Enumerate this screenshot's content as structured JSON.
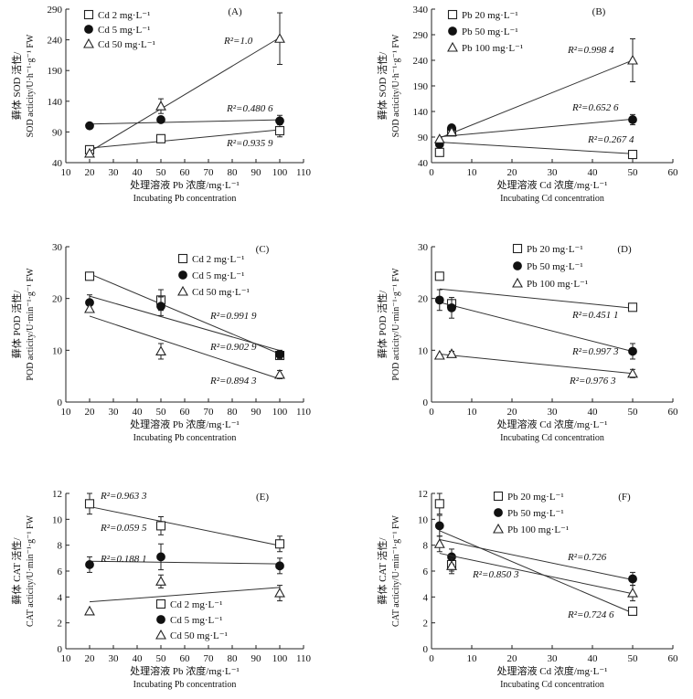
{
  "chart_data": [
    {
      "panel": "(A)",
      "type": "scatter",
      "xlabel_cn": "处理溶液 Pb 浓度/mg·L⁻¹",
      "xlabel_en": "Incubating Pb concentration",
      "ylabel_cn": "藓体 SOD 活性/",
      "ylabel_en": "SOD acticity/U·h⁻¹·g⁻¹ FW",
      "xlim": [
        10,
        110
      ],
      "xticks": [
        10,
        20,
        30,
        40,
        50,
        60,
        70,
        80,
        90,
        100,
        110
      ],
      "ylim": [
        40,
        290
      ],
      "yticks": [
        40,
        90,
        140,
        190,
        240,
        290
      ],
      "series": [
        {
          "name": "Cd 2 mg·L⁻¹",
          "marker": "square",
          "x": [
            20,
            50,
            100
          ],
          "y": [
            61,
            79,
            92
          ],
          "err": [
            0,
            0,
            10
          ],
          "r2": "R²=0.935 9"
        },
        {
          "name": "Cd 5 mg·L⁻¹",
          "marker": "diamond",
          "x": [
            20,
            50,
            100
          ],
          "y": [
            100,
            110,
            108
          ],
          "err": [
            0,
            5,
            9
          ],
          "r2": "R²=0.480 6"
        },
        {
          "name": "Cd 50 mg·L⁻¹",
          "marker": "triangle",
          "x": [
            20,
            50,
            100
          ],
          "y": [
            55,
            132,
            242
          ],
          "err": [
            0,
            12,
            42
          ],
          "r2": "R²=1.0"
        }
      ]
    },
    {
      "panel": "(B)",
      "type": "scatter",
      "xlabel_cn": "处理溶液 Cd 浓度/mg·L⁻¹",
      "xlabel_en": "Incubating Cd concentration",
      "ylabel_cn": "藓体 SOD 活性/",
      "ylabel_en": "SOD acticity/U·h⁻¹·g⁻¹ FW",
      "xlim": [
        0,
        60
      ],
      "xticks": [
        0,
        10,
        20,
        30,
        40,
        50,
        60
      ],
      "ylim": [
        40,
        340
      ],
      "yticks": [
        40,
        90,
        140,
        190,
        240,
        290,
        340
      ],
      "series": [
        {
          "name": "Pb 20 mg·L⁻¹",
          "marker": "square",
          "x": [
            2,
            5,
            50
          ],
          "y": [
            60,
            100,
            56
          ],
          "err": [
            0,
            0,
            0
          ],
          "r2": "R²=0.267 4"
        },
        {
          "name": "Pb 50 mg·L⁻¹",
          "marker": "diamond",
          "x": [
            2,
            5,
            50
          ],
          "y": [
            76,
            108,
            124
          ],
          "err": [
            0,
            5,
            10
          ],
          "r2": "R²=0.652 6"
        },
        {
          "name": "Pb 100 mg·L⁻¹",
          "marker": "triangle",
          "x": [
            2,
            5,
            50
          ],
          "y": [
            86,
            100,
            240
          ],
          "err": [
            0,
            6,
            42
          ],
          "r2": "R²=0.998 4"
        }
      ]
    },
    {
      "panel": "(C)",
      "type": "scatter",
      "xlabel_cn": "处理溶液 Pb 浓度/mg·L⁻¹",
      "xlabel_en": "Incubating Pb concentration",
      "ylabel_cn": "藓体 POD 活性/",
      "ylabel_en": "POD acticity/U·min⁻¹·g⁻¹ FW",
      "xlim": [
        10,
        110
      ],
      "xticks": [
        10,
        20,
        30,
        40,
        50,
        60,
        70,
        80,
        90,
        100,
        110
      ],
      "ylim": [
        0,
        30
      ],
      "yticks": [
        0,
        10,
        20,
        30
      ],
      "series": [
        {
          "name": "Cd 2 mg·L⁻¹",
          "marker": "square",
          "x": [
            20,
            50,
            100
          ],
          "y": [
            24.3,
            19.7,
            9.0
          ],
          "err": [
            0,
            2.0,
            0.7
          ],
          "r2": "R²=0.991 9"
        },
        {
          "name": "Cd 5 mg·L⁻¹",
          "marker": "diamond",
          "x": [
            20,
            50,
            100
          ],
          "y": [
            19.2,
            18.5,
            9.2
          ],
          "err": [
            1.5,
            1.8,
            0.8
          ],
          "r2": "R²=0.902 9"
        },
        {
          "name": "Cd 50 mg·L⁻¹",
          "marker": "triangle",
          "x": [
            20,
            50,
            100
          ],
          "y": [
            18.0,
            9.8,
            5.3
          ],
          "err": [
            0,
            1.5,
            0.8
          ],
          "r2": "R²=0.894 3"
        }
      ]
    },
    {
      "panel": "(D)",
      "type": "scatter",
      "xlabel_cn": "处理溶液 Cd 浓度/mg·L⁻¹",
      "xlabel_en": "Incubating Cd concentration",
      "ylabel_cn": "藓体 POD 活性/",
      "ylabel_en": "POD acticity/U·min⁻¹·g⁻¹ FW",
      "xlim": [
        0,
        60
      ],
      "xticks": [
        0,
        10,
        20,
        30,
        40,
        50,
        60
      ],
      "ylim": [
        0,
        30
      ],
      "yticks": [
        0,
        10,
        20,
        30
      ],
      "series": [
        {
          "name": "Pb 20 mg·L⁻¹",
          "marker": "square",
          "x": [
            2,
            5,
            50
          ],
          "y": [
            24.3,
            19.0,
            18.3
          ],
          "err": [
            0,
            0,
            0
          ],
          "r2": "R²=0.451 1"
        },
        {
          "name": "Pb 50 mg·L⁻¹",
          "marker": "diamond",
          "x": [
            2,
            5,
            50
          ],
          "y": [
            19.7,
            18.2,
            9.8
          ],
          "err": [
            2.0,
            2.0,
            1.5
          ],
          "r2": "R²=0.997 3"
        },
        {
          "name": "Pb 100 mg·L⁻¹",
          "marker": "triangle",
          "x": [
            2,
            5,
            50
          ],
          "y": [
            9.0,
            9.3,
            5.5
          ],
          "err": [
            0,
            0.5,
            0.8
          ],
          "r2": "R²=0.976 3"
        }
      ]
    },
    {
      "panel": "(E)",
      "type": "scatter",
      "xlabel_cn": "处理溶液 Pb 浓度/mg·L⁻¹",
      "xlabel_en": "Incubating Pb concentration",
      "ylabel_cn": "藓体 CAT 活性/",
      "ylabel_en": "CAT acticity/U·min⁻¹·g⁻¹ FW",
      "xlim": [
        10,
        110
      ],
      "xticks": [
        10,
        20,
        30,
        40,
        50,
        60,
        70,
        80,
        90,
        100,
        110
      ],
      "ylim": [
        0,
        12
      ],
      "yticks": [
        0,
        2,
        4,
        6,
        8,
        10,
        12
      ],
      "series": [
        {
          "name": "Cd 2 mg·L⁻¹",
          "marker": "square",
          "x": [
            20,
            50,
            100
          ],
          "y": [
            11.2,
            9.5,
            8.1
          ],
          "err": [
            0.8,
            0.7,
            0.6
          ],
          "r2": "R²=0.963 3"
        },
        {
          "name": "Cd 5 mg·L⁻¹",
          "marker": "diamond",
          "x": [
            20,
            50,
            100
          ],
          "y": [
            6.5,
            7.1,
            6.4
          ],
          "err": [
            0.6,
            1.0,
            0.6
          ],
          "r2": "R²=0.059 5"
        },
        {
          "name": "Cd 50 mg·L⁻¹",
          "marker": "triangle",
          "x": [
            20,
            50,
            100
          ],
          "y": [
            2.9,
            5.2,
            4.3
          ],
          "err": [
            0,
            0.5,
            0.6
          ],
          "r2": "R²=0.188 1"
        }
      ]
    },
    {
      "panel": "(F)",
      "type": "scatter",
      "xlabel_cn": "处理溶液 Cd 浓度/mg·L⁻¹",
      "xlabel_en": "Incubating Cd concentration",
      "ylabel_cn": "藓体 CAT 活性/",
      "ylabel_en": "CAT acticity/U·min⁻¹·g⁻¹ FW",
      "xlim": [
        0,
        60
      ],
      "xticks": [
        0,
        10,
        20,
        30,
        40,
        50,
        60
      ],
      "ylim": [
        0,
        12
      ],
      "yticks": [
        0,
        2,
        4,
        6,
        8,
        10,
        12
      ],
      "series": [
        {
          "name": "Pb 20 mg·L⁻¹",
          "marker": "square",
          "x": [
            2,
            5,
            50
          ],
          "y": [
            11.2,
            6.5,
            2.9
          ],
          "err": [
            0.8,
            0.5,
            0
          ],
          "r2": "R²=0.724 6"
        },
        {
          "name": "Pb 50 mg·L⁻¹",
          "marker": "diamond",
          "x": [
            2,
            5,
            50
          ],
          "y": [
            9.5,
            7.1,
            5.4
          ],
          "err": [
            0.8,
            0.6,
            0.5
          ],
          "r2": "R²=0.726"
        },
        {
          "name": "Pb 100 mg·L⁻¹",
          "marker": "triangle",
          "x": [
            2,
            5,
            50
          ],
          "y": [
            8.1,
            6.4,
            4.3
          ],
          "err": [
            0.6,
            0.6,
            0.6
          ],
          "r2": "R²=0.850 3"
        }
      ]
    }
  ]
}
